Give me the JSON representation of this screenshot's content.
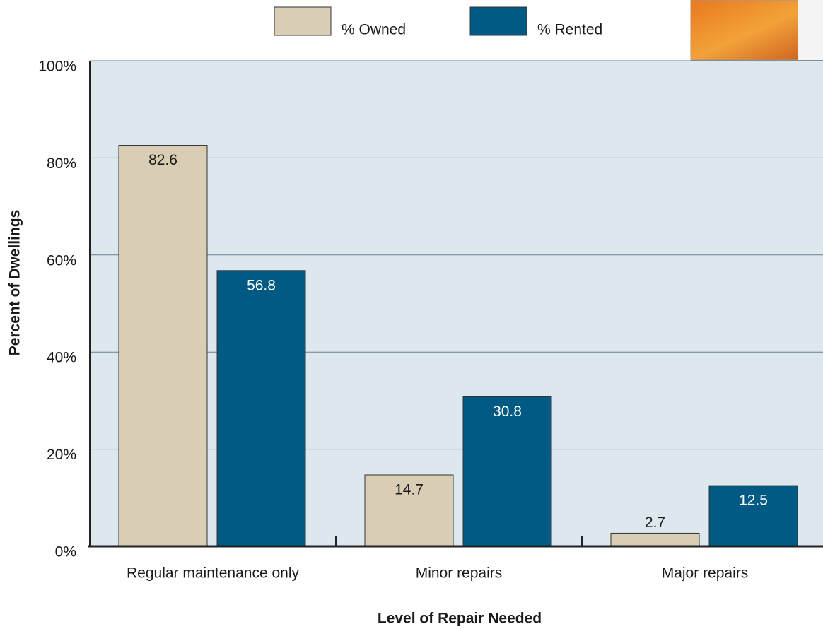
{
  "chart_data": {
    "type": "bar",
    "categories": [
      "Regular maintenance only",
      "Minor repairs",
      "Major repairs"
    ],
    "series": [
      {
        "name": "% Owned",
        "color": "#d9cdb5",
        "values": [
          82.6,
          14.7,
          2.7
        ]
      },
      {
        "name": "% Rented",
        "color": "#005a84",
        "values": [
          56.8,
          30.8,
          12.5
        ]
      }
    ],
    "ylim": [
      0,
      100
    ],
    "yticks": [
      {
        "value": 0,
        "label": "0%"
      },
      {
        "value": 20,
        "label": "20%"
      },
      {
        "value": 40,
        "label": "40%"
      },
      {
        "value": 60,
        "label": "60%"
      },
      {
        "value": 80,
        "label": "80%"
      },
      {
        "value": 100,
        "label": "100%"
      }
    ],
    "y_label": "Percent of Dwellings",
    "x_label": "Level of Repair Needed",
    "grid": true
  }
}
